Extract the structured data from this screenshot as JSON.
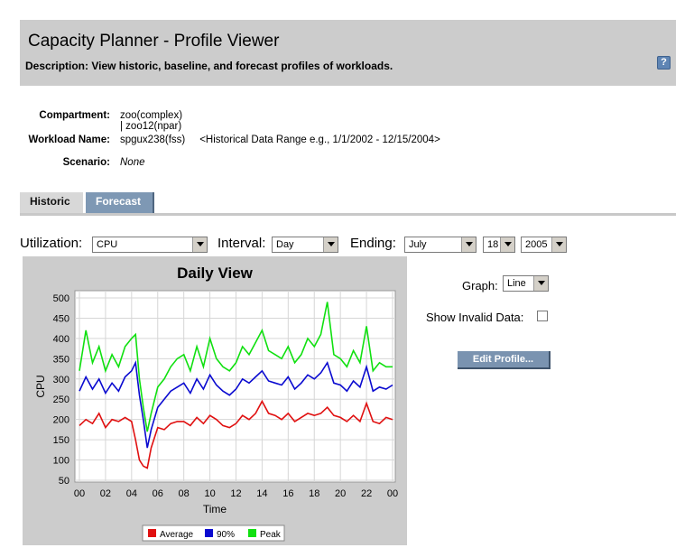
{
  "header": {
    "title": "Capacity Planner - Profile Viewer",
    "description": "Description: View historic, baseline, and forecast profiles of workloads.",
    "help_glyph": "?"
  },
  "meta": {
    "compartment_label": "Compartment:",
    "compartment_value": "zoo(complex) | zoo12(npar)",
    "workload_label": "Workload Name:",
    "workload_value": "spgux238(fss)     <Historical Data Range e.g., 1/1/2002 - 12/15/2004>",
    "scenario_label": "Scenario:",
    "scenario_value": "None"
  },
  "tabs": [
    {
      "label": "Historic",
      "active": true
    },
    {
      "label": "Forecast",
      "active": false
    }
  ],
  "controls": {
    "utilization_label": "Utilization:",
    "utilization_value": "CPU",
    "interval_label": "Interval:",
    "interval_value": "Day",
    "ending_label": "Ending:",
    "month_value": "July",
    "day_value": "18",
    "year_value": "2005"
  },
  "right_panel": {
    "graph_label": "Graph:",
    "graph_value": "Line",
    "invalid_label": "Show Invalid Data:",
    "invalid_checked": false,
    "edit_button": "Edit Profile..."
  },
  "chart_data": {
    "type": "line",
    "title": "Daily View",
    "xlabel": "Time",
    "ylabel": "CPU",
    "xlim": [
      0,
      24
    ],
    "ylim": [
      50,
      500
    ],
    "x_ticks": [
      "00",
      "02",
      "04",
      "06",
      "08",
      "10",
      "12",
      "14",
      "16",
      "18",
      "20",
      "22",
      "00"
    ],
    "y_ticks": [
      50,
      100,
      150,
      200,
      250,
      300,
      350,
      400,
      450,
      500
    ],
    "grid": true,
    "legend_position": "bottom",
    "series": [
      {
        "name": "Average",
        "color": "#e01010",
        "x": [
          0,
          0.5,
          1,
          1.5,
          2,
          2.5,
          3,
          3.5,
          4,
          4.3,
          4.6,
          4.9,
          5.2,
          5.5,
          6,
          6.5,
          7,
          7.5,
          8,
          8.5,
          9,
          9.5,
          10,
          10.5,
          11,
          11.5,
          12,
          12.5,
          13,
          13.5,
          14,
          14.5,
          15,
          15.5,
          16,
          16.5,
          17,
          17.5,
          18,
          18.5,
          19,
          19.5,
          20,
          20.5,
          21,
          21.5,
          22,
          22.5,
          23,
          23.5,
          24
        ],
        "values": [
          185,
          200,
          190,
          215,
          180,
          200,
          195,
          205,
          195,
          150,
          100,
          85,
          80,
          130,
          180,
          175,
          190,
          195,
          195,
          185,
          205,
          190,
          210,
          200,
          185,
          180,
          190,
          210,
          200,
          215,
          245,
          215,
          210,
          200,
          215,
          195,
          205,
          215,
          210,
          215,
          230,
          210,
          205,
          195,
          210,
          195,
          240,
          195,
          190,
          205,
          200
        ]
      },
      {
        "name": "90%",
        "color": "#0a0ad0",
        "x": [
          0,
          0.5,
          1,
          1.5,
          2,
          2.5,
          3,
          3.5,
          4,
          4.3,
          4.6,
          4.9,
          5.2,
          5.5,
          6,
          6.5,
          7,
          7.5,
          8,
          8.5,
          9,
          9.5,
          10,
          10.5,
          11,
          11.5,
          12,
          12.5,
          13,
          13.5,
          14,
          14.5,
          15,
          15.5,
          16,
          16.5,
          17,
          17.5,
          18,
          18.5,
          19,
          19.5,
          20,
          20.5,
          21,
          21.5,
          22,
          22.5,
          23,
          23.5,
          24
        ],
        "values": [
          270,
          305,
          275,
          300,
          265,
          290,
          270,
          305,
          320,
          340,
          260,
          200,
          130,
          175,
          230,
          250,
          270,
          280,
          290,
          265,
          300,
          275,
          310,
          285,
          270,
          260,
          275,
          300,
          290,
          305,
          320,
          295,
          290,
          285,
          305,
          275,
          290,
          310,
          300,
          315,
          340,
          290,
          285,
          270,
          295,
          280,
          330,
          270,
          280,
          275,
          285
        ]
      },
      {
        "name": "Peak",
        "color": "#10e010",
        "x": [
          0,
          0.5,
          1,
          1.5,
          2,
          2.5,
          3,
          3.5,
          4,
          4.3,
          4.6,
          4.9,
          5.2,
          5.5,
          6,
          6.5,
          7,
          7.5,
          8,
          8.5,
          9,
          9.5,
          10,
          10.5,
          11,
          11.5,
          12,
          12.5,
          13,
          13.5,
          14,
          14.5,
          15,
          15.5,
          16,
          16.5,
          17,
          17.5,
          18,
          18.5,
          19,
          19.5,
          20,
          20.5,
          21,
          21.5,
          22,
          22.5,
          23,
          23.5,
          24
        ],
        "values": [
          320,
          420,
          340,
          380,
          320,
          360,
          330,
          380,
          400,
          410,
          300,
          230,
          170,
          215,
          280,
          300,
          330,
          350,
          360,
          320,
          380,
          330,
          400,
          350,
          330,
          320,
          340,
          380,
          360,
          390,
          420,
          370,
          360,
          350,
          380,
          340,
          360,
          400,
          380,
          410,
          490,
          360,
          350,
          330,
          370,
          340,
          430,
          320,
          340,
          330,
          330
        ]
      }
    ]
  }
}
